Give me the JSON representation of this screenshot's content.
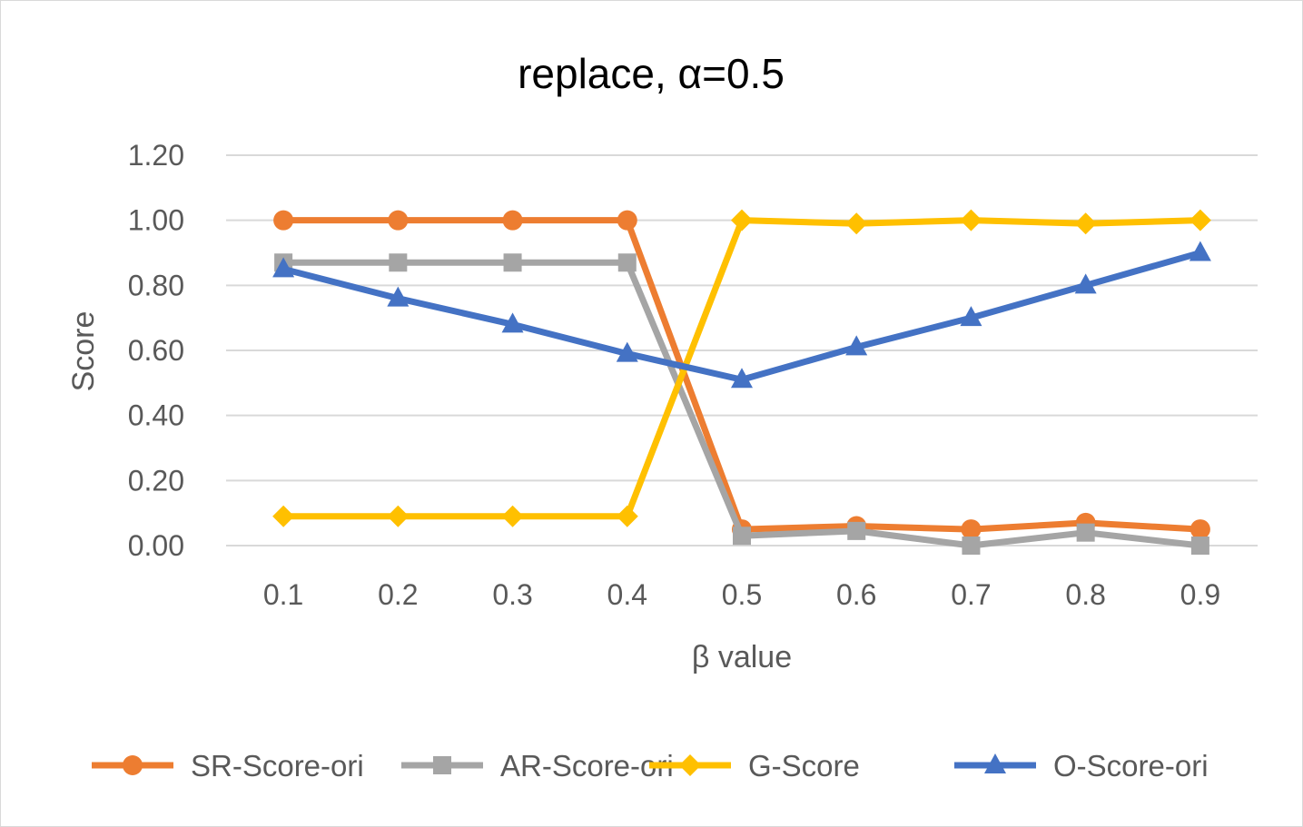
{
  "chart_data": {
    "type": "line",
    "title": "replace, α=0.5",
    "xlabel": "β value",
    "ylabel": "Score",
    "categories": [
      "0.1",
      "0.2",
      "0.3",
      "0.4",
      "0.5",
      "0.6",
      "0.7",
      "0.8",
      "0.9"
    ],
    "ylim": [
      0,
      1.2
    ],
    "yticks": [
      "0.00",
      "0.20",
      "0.40",
      "0.60",
      "0.80",
      "1.00",
      "1.20"
    ],
    "grid": true,
    "legend_position": "bottom",
    "series": [
      {
        "name": "SR-Score-ori",
        "color": "#ED7D31",
        "marker": "circle",
        "values": [
          1.0,
          1.0,
          1.0,
          1.0,
          0.05,
          0.06,
          0.05,
          0.07,
          0.05
        ]
      },
      {
        "name": "AR-Score-ori",
        "color": "#A5A5A5",
        "marker": "square",
        "values": [
          0.87,
          0.87,
          0.87,
          0.87,
          0.03,
          0.045,
          0.0,
          0.04,
          0.0
        ]
      },
      {
        "name": "G-Score",
        "color": "#FFC000",
        "marker": "diamond",
        "values": [
          0.09,
          0.09,
          0.09,
          0.09,
          1.0,
          0.99,
          1.0,
          0.99,
          1.0
        ]
      },
      {
        "name": "O-Score-ori",
        "color": "#4472C4",
        "marker": "triangle",
        "values": [
          0.85,
          0.76,
          0.68,
          0.59,
          0.51,
          0.61,
          0.7,
          0.8,
          0.9
        ]
      }
    ]
  }
}
